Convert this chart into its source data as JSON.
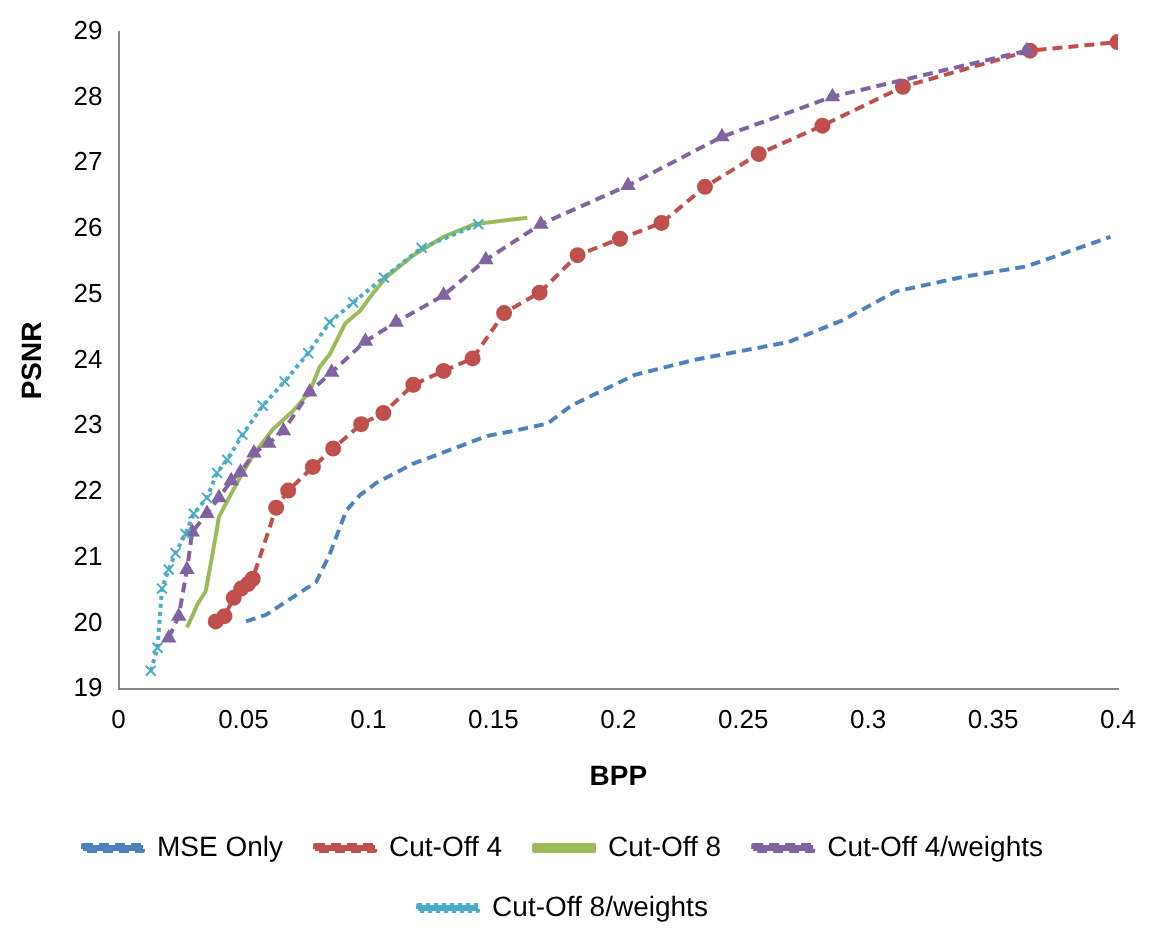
{
  "chart_data": {
    "type": "line",
    "xlabel": "BPP",
    "ylabel": "PSNR",
    "xlim": [
      0,
      0.4
    ],
    "xticks": [
      0,
      0.05,
      0.1,
      0.15,
      0.2,
      0.25,
      0.3,
      0.35,
      0.4
    ],
    "ylim": [
      19,
      29
    ],
    "yticks": [
      19,
      20,
      21,
      22,
      23,
      24,
      25,
      26,
      27,
      28,
      29
    ],
    "grid": false,
    "legend": "bottom",
    "series": [
      {
        "name": "MSE Only",
        "color": "#4f81bd",
        "marker": "none",
        "line_style": "dashed",
        "x": [
          0.051,
          0.059,
          0.0791,
          0.0845,
          0.0912,
          0.0966,
          0.1033,
          0.118,
          0.1341,
          0.1475,
          0.1583,
          0.1717,
          0.1811,
          0.2066,
          0.2307,
          0.2683,
          0.2897,
          0.3112,
          0.338,
          0.3635,
          0.397
        ],
        "values": [
          20.03,
          20.13,
          20.63,
          21.05,
          21.72,
          21.95,
          22.14,
          22.43,
          22.66,
          22.85,
          22.93,
          23.04,
          23.31,
          23.78,
          24.01,
          24.28,
          24.61,
          25.05,
          25.27,
          25.43,
          25.88
        ]
      },
      {
        "name": "Cut-Off 4",
        "color": "#c0504d",
        "marker": "circle",
        "line_style": "dashed",
        "x": [
          0.0389,
          0.0424,
          0.0461,
          0.0491,
          0.0518,
          0.0537,
          0.0631,
          0.0679,
          0.0778,
          0.0859,
          0.0971,
          0.106,
          0.118,
          0.1301,
          0.1417,
          0.1543,
          0.1685,
          0.1837,
          0.2007,
          0.2173,
          0.2347,
          0.2562,
          0.2817,
          0.3139,
          0.3648,
          0.3998
        ],
        "values": [
          20.03,
          20.11,
          20.39,
          20.53,
          20.6,
          20.68,
          21.76,
          22.02,
          22.38,
          22.66,
          23.03,
          23.2,
          23.63,
          23.84,
          24.03,
          24.72,
          25.03,
          25.6,
          25.85,
          26.09,
          26.64,
          27.14,
          27.57,
          28.16,
          28.71,
          28.84
        ]
      },
      {
        "name": "Cut-Off 8",
        "color": "#9bbb59",
        "marker": "none",
        "line_style": "solid",
        "x": [
          0.0274,
          0.0295,
          0.0317,
          0.0349,
          0.0376,
          0.0402,
          0.0435,
          0.0496,
          0.055,
          0.0617,
          0.0698,
          0.0765,
          0.0805,
          0.0845,
          0.0907,
          0.0966,
          0.102,
          0.1073,
          0.118,
          0.1301,
          0.1422,
          0.1636
        ],
        "values": [
          19.94,
          20.11,
          20.3,
          20.49,
          21.05,
          21.62,
          21.86,
          22.29,
          22.62,
          22.95,
          23.23,
          23.52,
          23.9,
          24.09,
          24.56,
          24.75,
          25.03,
          25.27,
          25.6,
          25.88,
          26.07,
          26.17
        ]
      },
      {
        "name": "Cut-Off 4/weights",
        "color": "#8064a2",
        "marker": "triangle",
        "line_style": "dashed",
        "x": [
          0.0201,
          0.0241,
          0.0274,
          0.0295,
          0.0354,
          0.0402,
          0.0451,
          0.0488,
          0.0542,
          0.0601,
          0.066,
          0.0765,
          0.0853,
          0.0988,
          0.1111,
          0.1301,
          0.147,
          0.169,
          0.2039,
          0.2415,
          0.2857,
          0.3635
        ],
        "values": [
          19.78,
          20.11,
          20.82,
          21.39,
          21.67,
          21.91,
          22.17,
          22.3,
          22.59,
          22.74,
          22.93,
          23.52,
          23.82,
          24.29,
          24.58,
          24.99,
          25.53,
          26.07,
          26.66,
          27.4,
          28.01,
          28.71
        ]
      },
      {
        "name": "Cut-Off 8/weights",
        "color": "#4bacc6",
        "marker": "cross",
        "line_style": "dotted",
        "x": [
          0.0129,
          0.0156,
          0.0174,
          0.0201,
          0.0228,
          0.0268,
          0.0301,
          0.0354,
          0.0394,
          0.0435,
          0.0496,
          0.0577,
          0.0665,
          0.0759,
          0.0845,
          0.0939,
          0.1062,
          0.1213,
          0.144
        ],
        "values": [
          19.28,
          19.63,
          20.53,
          20.82,
          21.07,
          21.36,
          21.67,
          21.91,
          22.29,
          22.49,
          22.87,
          23.31,
          23.68,
          24.11,
          24.58,
          24.88,
          25.26,
          25.71,
          26.07
        ]
      }
    ]
  }
}
